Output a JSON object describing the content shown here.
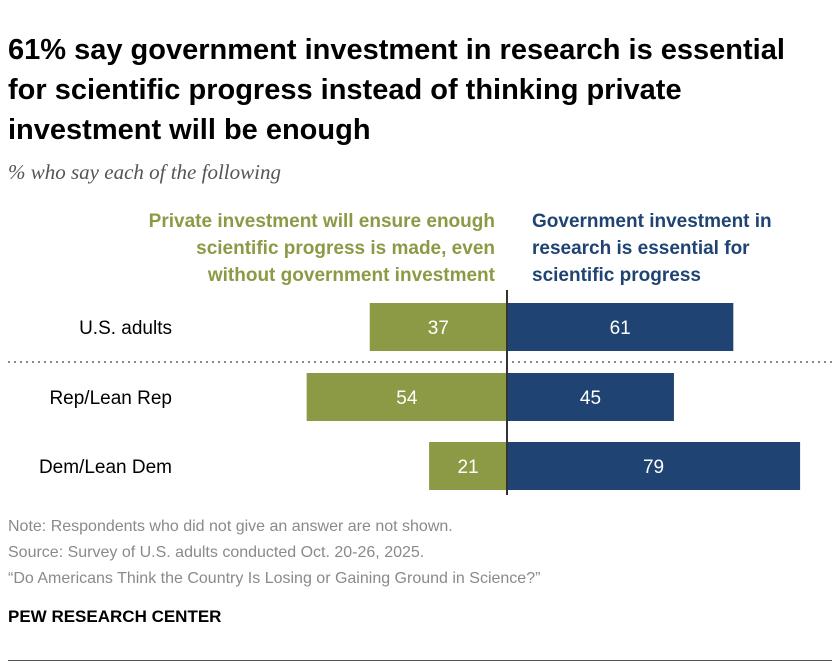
{
  "title": "61% say government investment in research is essential for scientific progress instead of thinking private investment will be enough",
  "subtitle": "% who say each of the following",
  "colors": {
    "private": "#8c9a45",
    "government": "#1f4373",
    "divider": "#333333"
  },
  "chart_data": {
    "type": "bar",
    "orientation": "diverging-horizontal",
    "categories": [
      "U.S. adults",
      "Rep/Lean Rep",
      "Dem/Lean Dem"
    ],
    "series": [
      {
        "name": "Private investment will ensure enough scientific progress is made, even without government investment",
        "values": [
          37,
          54,
          21
        ]
      },
      {
        "name": "Government investment in research is essential for scientific progress",
        "values": [
          61,
          45,
          79
        ]
      }
    ],
    "legend_left_lines": [
      "Private investment will ensure enough",
      "scientific progress is made, even",
      "without government investment"
    ],
    "legend_right_lines": [
      "Government investment in",
      "research is essential for",
      "scientific progress"
    ],
    "dotted_separator_after": "U.S. adults"
  },
  "notes": [
    "Note: Respondents who did not give an answer are not shown.",
    "Source: Survey of U.S. adults conducted Oct. 20-26, 2025.",
    "“Do Americans Think the Country Is Losing or Gaining Ground in Science?”"
  ],
  "brand": "PEW RESEARCH CENTER"
}
